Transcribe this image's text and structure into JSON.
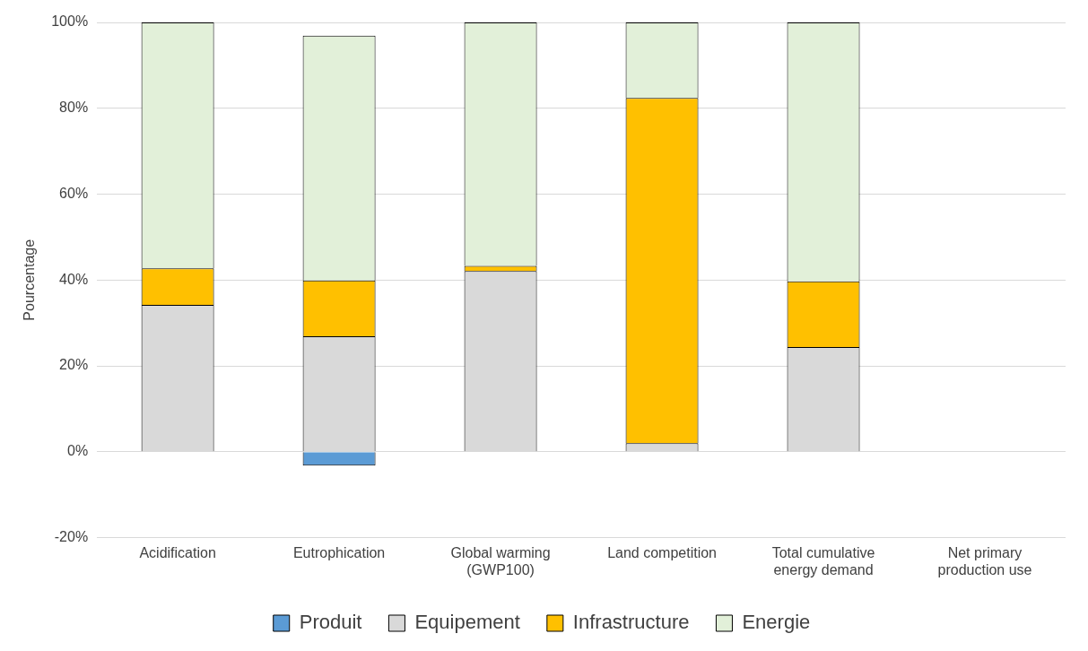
{
  "chart_data": {
    "type": "bar",
    "stacked": true,
    "ylabel": "Pourcentage",
    "categories": [
      "Acidification",
      "Eutrophication",
      "Global warming (GWP100)",
      "Land competition",
      "Total cumulative energy demand",
      "Net primary production use"
    ],
    "series": [
      {
        "name": "Produit",
        "color": "#5b9bd5",
        "values": [
          0,
          -3.2,
          0,
          0,
          0,
          null
        ]
      },
      {
        "name": "Equipement",
        "color": "#d9d9d9",
        "values": [
          34.2,
          26.9,
          42.1,
          2,
          24.4,
          null
        ]
      },
      {
        "name": "Infrastructure",
        "color": "#ffc000",
        "values": [
          8.5,
          13,
          1.2,
          80.4,
          15.3,
          null
        ]
      },
      {
        "name": "Energie",
        "color": "#e2f0d9",
        "values": [
          57.3,
          57,
          56.7,
          17.6,
          60.3,
          null
        ]
      }
    ],
    "ylim": [
      -20,
      100
    ],
    "yticks": [
      {
        "value": -20,
        "label": "-20%"
      },
      {
        "value": 0,
        "label": "0%"
      },
      {
        "value": 20,
        "label": "20%"
      },
      {
        "value": 40,
        "label": "40%"
      },
      {
        "value": 60,
        "label": "60%"
      },
      {
        "value": 80,
        "label": "80%"
      },
      {
        "value": 100,
        "label": "100%"
      }
    ],
    "grid": "y",
    "legend": "bottom"
  }
}
